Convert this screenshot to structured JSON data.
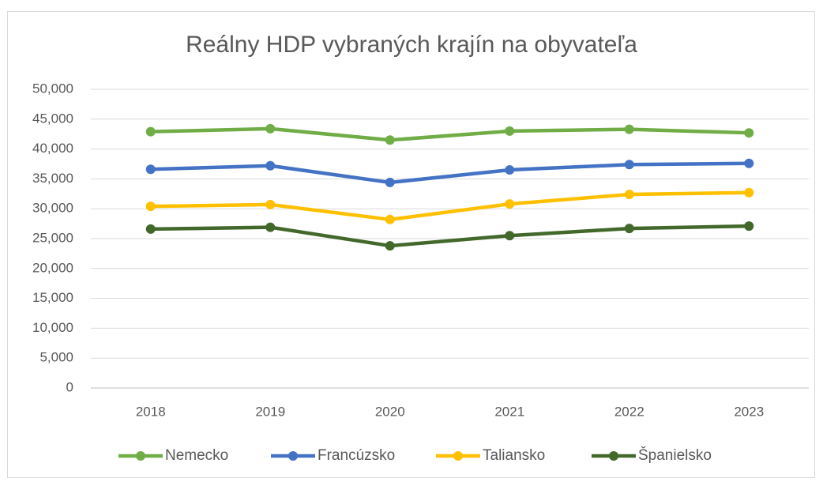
{
  "chart_data": {
    "type": "line",
    "title": "Reálny HDP vybraných krajín na obyvateľa",
    "categories": [
      "2018",
      "2019",
      "2020",
      "2021",
      "2022",
      "2023"
    ],
    "series": [
      {
        "name": "Nemecko",
        "color": "#70ad47",
        "values": [
          42900,
          43400,
          41500,
          43000,
          43300,
          42700
        ]
      },
      {
        "name": "Francúzsko",
        "color": "#4472c4",
        "values": [
          36600,
          37200,
          34400,
          36500,
          37400,
          37600
        ]
      },
      {
        "name": "Taliansko",
        "color": "#ffc000",
        "values": [
          30400,
          30700,
          28200,
          30800,
          32400,
          32700
        ]
      },
      {
        "name": "Španielsko",
        "color": "#43682b",
        "values": [
          26600,
          26900,
          23800,
          25500,
          26700,
          27100
        ]
      }
    ],
    "ylim": [
      0,
      50000
    ],
    "yticks": [
      0,
      {
        "value": 5000,
        "label": "5,000"
      },
      {
        "value": 10000,
        "label": "10,000"
      },
      {
        "value": 15000,
        "label": "15,000"
      },
      {
        "value": 20000,
        "label": "20,000"
      },
      {
        "value": 25000,
        "label": "25,000"
      },
      {
        "value": 30000,
        "label": "30,000"
      },
      {
        "value": 35000,
        "label": "35,000"
      },
      {
        "value": 40000,
        "label": "40,000"
      },
      {
        "value": 45000,
        "label": "45,000"
      },
      {
        "value": 50000,
        "label": "50,000"
      }
    ],
    "grid": true,
    "legend": "bottom"
  }
}
